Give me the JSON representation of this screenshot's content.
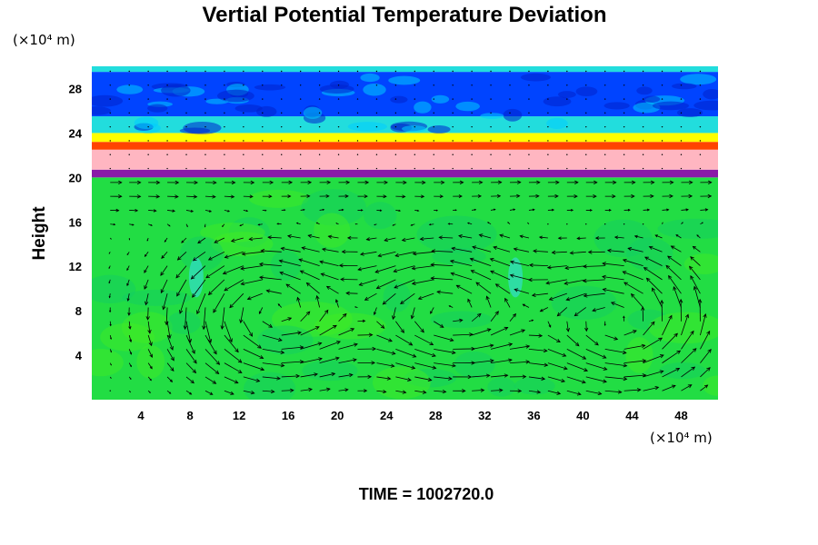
{
  "chart_data": {
    "type": "heatmap",
    "title": "Vertial Potential Temperature Deviation",
    "ylabel": "Height",
    "xlabel": "",
    "x_units": "(×10⁴ m)",
    "y_units": "(×10⁴ m)",
    "x_ticks": [
      4,
      8,
      12,
      16,
      20,
      24,
      28,
      32,
      36,
      40,
      44,
      48
    ],
    "y_ticks": [
      4,
      8,
      12,
      16,
      20,
      24,
      28
    ],
    "xlim": [
      0,
      51
    ],
    "ylim": [
      0,
      30
    ],
    "grid": false,
    "overlay": "velocity vectors (quiver)",
    "layers": [
      {
        "from": 0,
        "to": 20,
        "color": "#22dd44"
      },
      {
        "from": 20,
        "to": 20.7,
        "color": "#8a1aa8"
      },
      {
        "from": 20.7,
        "to": 22.5,
        "color": "#ffb6c1"
      },
      {
        "from": 22.5,
        "to": 23.2,
        "color": "#ff4400"
      },
      {
        "from": 23.2,
        "to": 24,
        "color": "#ffff00"
      },
      {
        "from": 24,
        "to": 25.5,
        "color": "#22dddd"
      },
      {
        "from": 25.5,
        "to": 29.5,
        "color": "#0044ff"
      },
      {
        "from": 29.5,
        "to": 30,
        "color": "#22dddd"
      }
    ],
    "circulation_cells": [
      {
        "center": [
          14.5,
          8
        ],
        "direction": "counterclockwise"
      },
      {
        "center": [
          29,
          8
        ],
        "direction": "counterclockwise"
      },
      {
        "center": [
          43,
          7
        ],
        "direction": "counterclockwise"
      }
    ]
  },
  "footer": {
    "time_text": "TIME = 1002720.0"
  }
}
